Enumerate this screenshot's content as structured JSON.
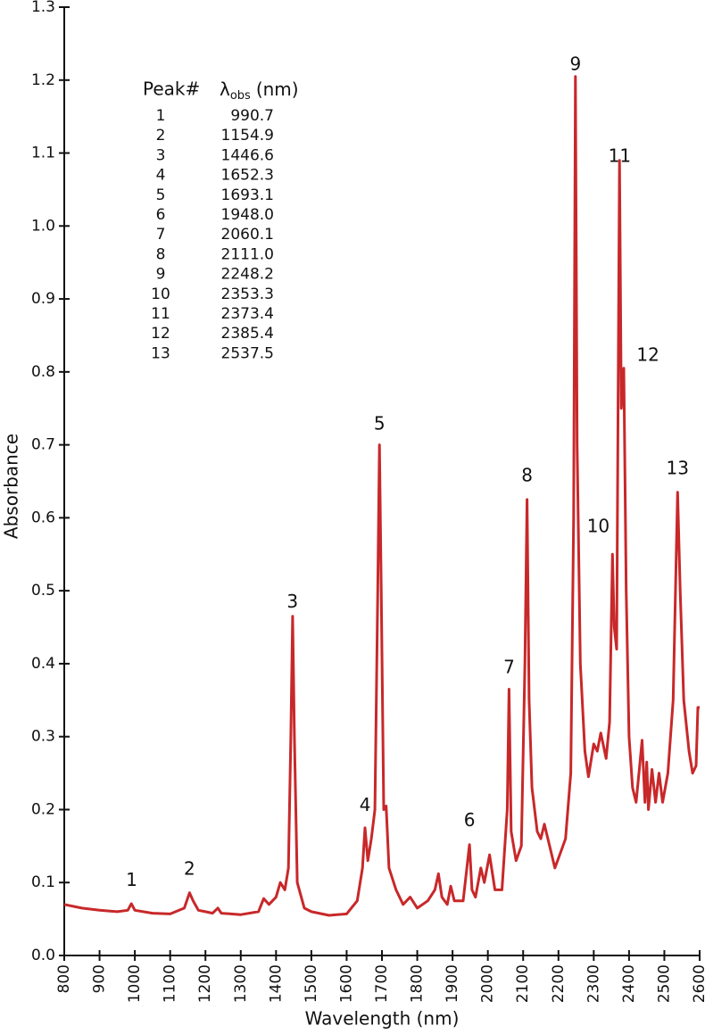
{
  "chart_data": {
    "type": "line",
    "x_label": "Wavelength (nm)",
    "y_label": "Absorbance",
    "xlim": [
      800,
      2600
    ],
    "ylim": [
      0,
      1.3
    ],
    "xticks": [
      800,
      900,
      1000,
      1100,
      1200,
      1300,
      1400,
      1500,
      1600,
      1700,
      1800,
      1900,
      2000,
      2100,
      2200,
      2300,
      2400,
      2500,
      2600
    ],
    "yticks": [
      {
        "value": 0,
        "label": "0.0"
      },
      0.1,
      0.2,
      0.3,
      0.4,
      0.5,
      0.6,
      0.7,
      0.8,
      0.9,
      {
        "value": 1,
        "label": "1.0"
      },
      1.1,
      1.2,
      1.3
    ],
    "series": [
      {
        "color": "#c8282a",
        "x": [
          800,
          850,
          900,
          950,
          980,
          990,
          1000,
          1050,
          1100,
          1140,
          1155,
          1165,
          1180,
          1200,
          1220,
          1235,
          1245,
          1300,
          1350,
          1365,
          1380,
          1400,
          1412,
          1425,
          1435,
          1442,
          1447,
          1452,
          1460,
          1480,
          1500,
          1550,
          1600,
          1630,
          1645,
          1652,
          1660,
          1670,
          1680,
          1688,
          1693,
          1698,
          1705,
          1712,
          1720,
          1740,
          1760,
          1780,
          1800,
          1830,
          1850,
          1860,
          1870,
          1885,
          1895,
          1905,
          1930,
          1948,
          1955,
          1965,
          1980,
          1990,
          2005,
          2020,
          2040,
          2055,
          2060,
          2066,
          2080,
          2095,
          2105,
          2111,
          2117,
          2125,
          2140,
          2150,
          2160,
          2175,
          2190,
          2205,
          2220,
          2235,
          2243,
          2248,
          2253,
          2262,
          2275,
          2285,
          2300,
          2310,
          2320,
          2335,
          2345,
          2353,
          2358,
          2365,
          2373,
          2378,
          2385,
          2392,
          2400,
          2410,
          2420,
          2430,
          2437,
          2445,
          2450,
          2455,
          2465,
          2475,
          2485,
          2495,
          2510,
          2525,
          2537.5,
          2545,
          2555,
          2570,
          2580,
          2590,
          2595,
          2600
        ],
        "values": [
          0.07,
          0.065,
          0.062,
          0.06,
          0.062,
          0.071,
          0.062,
          0.058,
          0.057,
          0.065,
          0.086,
          0.075,
          0.062,
          0.06,
          0.058,
          0.065,
          0.058,
          0.056,
          0.06,
          0.078,
          0.07,
          0.08,
          0.1,
          0.09,
          0.12,
          0.3,
          0.465,
          0.3,
          0.1,
          0.065,
          0.06,
          0.055,
          0.057,
          0.075,
          0.12,
          0.175,
          0.13,
          0.16,
          0.2,
          0.5,
          0.7,
          0.5,
          0.2,
          0.205,
          0.12,
          0.09,
          0.07,
          0.08,
          0.065,
          0.075,
          0.09,
          0.112,
          0.08,
          0.07,
          0.095,
          0.075,
          0.075,
          0.152,
          0.09,
          0.08,
          0.12,
          0.1,
          0.138,
          0.09,
          0.09,
          0.2,
          0.365,
          0.17,
          0.13,
          0.15,
          0.4,
          0.625,
          0.35,
          0.23,
          0.17,
          0.16,
          0.18,
          0.15,
          0.12,
          0.14,
          0.16,
          0.25,
          0.6,
          1.205,
          0.7,
          0.4,
          0.28,
          0.245,
          0.29,
          0.28,
          0.305,
          0.27,
          0.32,
          0.55,
          0.45,
          0.42,
          1.09,
          0.75,
          0.805,
          0.5,
          0.3,
          0.23,
          0.21,
          0.26,
          0.295,
          0.21,
          0.265,
          0.2,
          0.255,
          0.21,
          0.25,
          0.21,
          0.25,
          0.35,
          0.635,
          0.5,
          0.35,
          0.28,
          0.25,
          0.26,
          0.34,
          0.34
        ]
      }
    ],
    "peak_table": {
      "header": {
        "peak": "Peak#",
        "symbol": "λ",
        "subscript": "obs",
        "unit": "(nm)"
      },
      "rows": [
        [
          "1",
          "990.7"
        ],
        [
          "2",
          "1154.9"
        ],
        [
          "3",
          "1446.6"
        ],
        [
          "4",
          "1652.3"
        ],
        [
          "5",
          "1693.1"
        ],
        [
          "6",
          "1948.0"
        ],
        [
          "7",
          "2060.1"
        ],
        [
          "8",
          "2111.0"
        ],
        [
          "9",
          "2248.2"
        ],
        [
          "10",
          "2353.3"
        ],
        [
          "11",
          "2373.4"
        ],
        [
          "12",
          "2385.4"
        ],
        [
          "13",
          "2537.5"
        ]
      ]
    }
  }
}
